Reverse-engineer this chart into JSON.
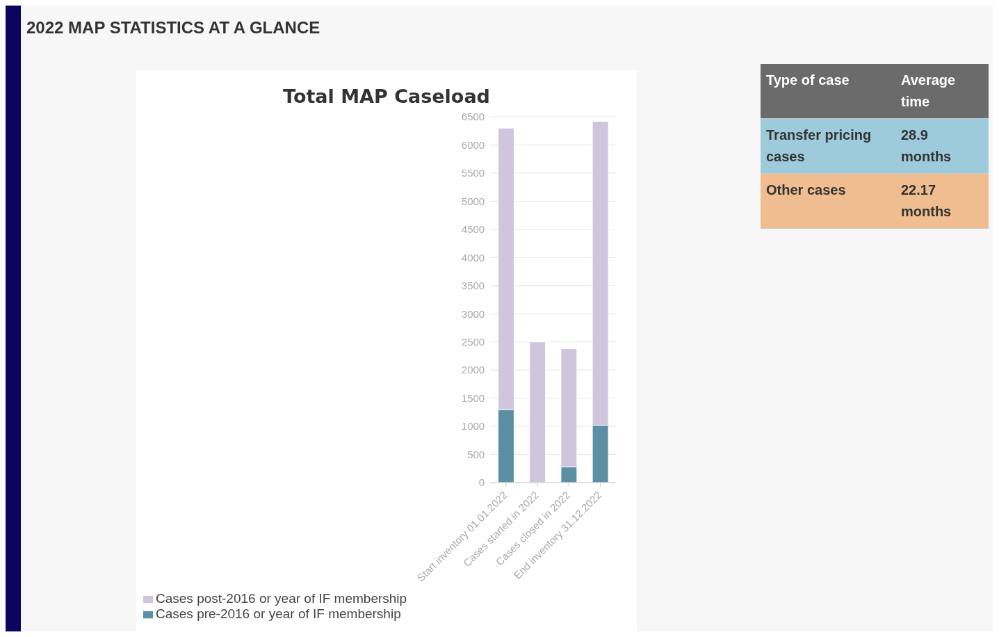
{
  "chart_data": [
    {
      "type": "bar",
      "title": "Total MAP Caseload",
      "annotations": [
        "2022 MAP STATISTICS AT A GLANCE"
      ],
      "categories": [
        "Start inventory 01.01.2022",
        "Cases started in 2022",
        "Cases closed in 2022",
        "End inventory 31.12.2022"
      ],
      "stacked": true,
      "series": [
        {
          "name": "Cases pre-2016 or year of IF membership",
          "color": "#5b8fa3",
          "values": [
            1300,
            0,
            280,
            1020
          ]
        },
        {
          "name": "Cases post-2016 or year of IF membership",
          "color": "#cfc6de",
          "values": [
            5000,
            2500,
            2100,
            5400
          ]
        }
      ],
      "ylim": [
        0,
        6500
      ],
      "yticks": [
        0,
        500,
        1000,
        1500,
        2000,
        2500,
        3000,
        3500,
        4000,
        4500,
        5000,
        5500,
        6000,
        6500
      ],
      "grid": "y",
      "legend": "bottom left"
    },
    {
      "type": "other",
      "annotations": [
        "Type of case",
        "Average time",
        "Transfer pricing cases",
        "28.9 months",
        "Other cases",
        "22.17 months"
      ]
    }
  ]
}
